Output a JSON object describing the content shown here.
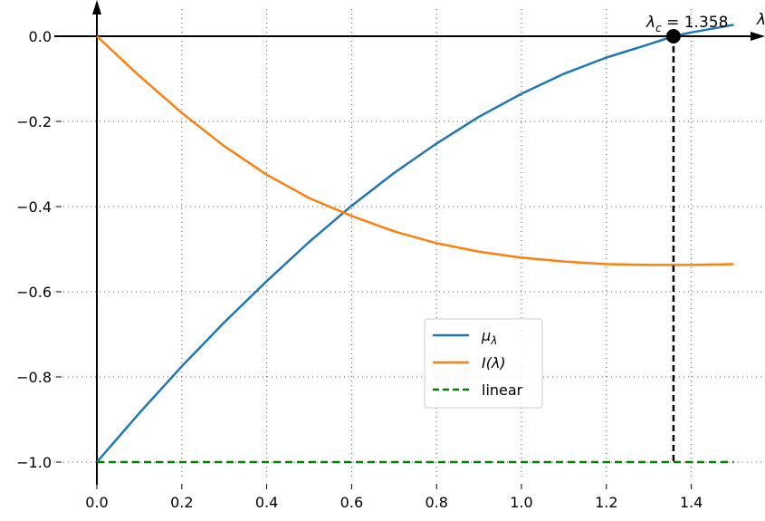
{
  "chart_data": {
    "type": "line",
    "xlabel": "λ",
    "ylabel": "",
    "xlim": [
      0.0,
      1.56
    ],
    "ylim": [
      -1.05,
      0.05
    ],
    "grid": true,
    "legend_position": "center-right",
    "x_ticks": [
      "0.0",
      "0.2",
      "0.4",
      "0.6",
      "0.8",
      "1.0",
      "1.2",
      "1.4"
    ],
    "x_tick_values": [
      0.0,
      0.2,
      0.4,
      0.6,
      0.8,
      1.0,
      1.2,
      1.4
    ],
    "y_ticks": [
      "0.0",
      "−0.2",
      "−0.4",
      "−0.6",
      "−0.8",
      "−1.0"
    ],
    "y_tick_values": [
      0.0,
      -0.2,
      -0.4,
      -0.6,
      -0.8,
      -1.0
    ],
    "x": [
      0.0,
      0.1,
      0.2,
      0.3,
      0.4,
      0.5,
      0.6,
      0.7,
      0.8,
      0.9,
      1.0,
      1.1,
      1.2,
      1.3,
      1.358,
      1.4,
      1.5
    ],
    "series": [
      {
        "name": "μ_λ",
        "label_main": "μ",
        "label_sub": "λ",
        "color": "#1f77b4",
        "style": "solid",
        "values": [
          -1.0,
          -0.885,
          -0.775,
          -0.672,
          -0.575,
          -0.483,
          -0.398,
          -0.321,
          -0.252,
          -0.189,
          -0.135,
          -0.088,
          -0.05,
          -0.019,
          0.0,
          0.009,
          0.027
        ]
      },
      {
        "name": "I(λ)",
        "label_main": "I(λ)",
        "label_sub": "",
        "color": "#ff7f0e",
        "style": "solid",
        "values": [
          0.0,
          -0.093,
          -0.18,
          -0.258,
          -0.325,
          -0.38,
          -0.422,
          -0.458,
          -0.486,
          -0.506,
          -0.52,
          -0.529,
          -0.535,
          -0.537,
          -0.537,
          -0.537,
          -0.535
        ]
      },
      {
        "name": "linear",
        "label_main": "linear",
        "label_sub": "",
        "color": "#008000",
        "style": "dashed",
        "values": [
          -1.0,
          -1.0,
          -1.0,
          -1.0,
          -1.0,
          -1.0,
          -1.0,
          -1.0,
          -1.0,
          -1.0,
          -1.0,
          -1.0,
          -1.0,
          -1.0,
          -1.0,
          -1.0,
          -1.0
        ]
      }
    ],
    "annotation": {
      "text_main": "λ",
      "text_sub": "c",
      "text_rest": " = 1.358",
      "x": 1.358,
      "y": 0.0
    }
  }
}
